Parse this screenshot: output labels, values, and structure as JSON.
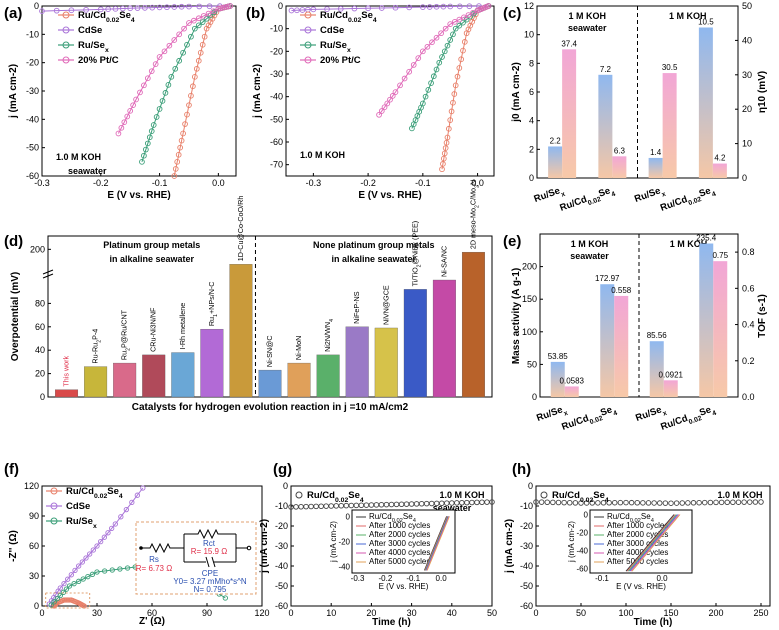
{
  "panel_labels": [
    "(a)",
    "(b)",
    "(c)",
    "(d)",
    "(e)",
    "(f)",
    "(g)",
    "(h)"
  ],
  "legend_polar": [
    "Ru/Cd0.02Se4",
    "CdSe",
    "Ru/Sex",
    "20% Pt/C"
  ],
  "legend_eis": [
    "Ru/Cd0.02Se4",
    "CdSe",
    "Ru/Sex"
  ],
  "legend_stab": [
    "Ru/Cd0.02Se4"
  ],
  "colors": {
    "RuCd": "#e8806a",
    "CdSe": "#a974d8",
    "RuSe": "#3a9e78",
    "PtC": "#e069b8"
  },
  "chart_data": [
    {
      "id": "a",
      "type": "line",
      "title": "",
      "annotation": [
        "1.0 M KOH",
        "seawater"
      ],
      "xlabel": "E (V vs. RHE)",
      "ylabel": "j (mA cm-2)",
      "xlim": [
        -0.3,
        0.03
      ],
      "ylim": [
        -60,
        0
      ],
      "xticks": [
        -0.3,
        -0.2,
        -0.1,
        0.0
      ],
      "yticks": [
        -60,
        -50,
        -40,
        -30,
        -20,
        -10,
        0
      ],
      "series": [
        {
          "name": "Ru/Cd0.02Se4",
          "x": [
            0.02,
            0.0,
            -0.02,
            -0.04,
            -0.06,
            -0.075
          ],
          "y": [
            0,
            -1,
            -8,
            -25,
            -45,
            -60
          ]
        },
        {
          "name": "CdSe",
          "x": [
            0.02,
            -0.05,
            -0.1,
            -0.15,
            -0.2,
            -0.3
          ],
          "y": [
            0,
            -0.2,
            -0.5,
            -0.8,
            -1.2,
            -1.8
          ]
        },
        {
          "name": "Ru/Sex",
          "x": [
            0.02,
            0.0,
            -0.04,
            -0.08,
            -0.11,
            -0.13
          ],
          "y": [
            0,
            -1,
            -8,
            -25,
            -42,
            -55
          ]
        },
        {
          "name": "20% Pt/C",
          "x": [
            0.02,
            0.0,
            -0.05,
            -0.1,
            -0.14,
            -0.17
          ],
          "y": [
            0,
            -1,
            -6,
            -18,
            -33,
            -45
          ]
        }
      ]
    },
    {
      "id": "b",
      "type": "line",
      "title": "",
      "annotation": [
        "1.0 M KOH"
      ],
      "xlabel": "E (V vs. RHE)",
      "ylabel": "j (mA cm-2)",
      "xlim": [
        -0.35,
        0.03
      ],
      "ylim": [
        -75,
        0
      ],
      "xticks": [
        -0.3,
        -0.2,
        -0.1,
        0.0
      ],
      "yticks": [
        -70,
        -60,
        -50,
        -40,
        -30,
        -20,
        -10,
        0
      ],
      "series": [
        {
          "name": "Ru/Cd0.02Se4",
          "x": [
            0.02,
            0.0,
            -0.02,
            -0.04,
            -0.055,
            -0.065
          ],
          "y": [
            0,
            -2,
            -12,
            -35,
            -58,
            -72
          ]
        },
        {
          "name": "CdSe",
          "x": [
            0.02,
            -0.05,
            -0.1,
            -0.2,
            -0.3,
            -0.34
          ],
          "y": [
            0,
            -0.2,
            -0.5,
            -1.0,
            -1.5,
            -2
          ]
        },
        {
          "name": "Ru/Sex",
          "x": [
            0.02,
            0.0,
            -0.04,
            -0.07,
            -0.1,
            -0.12
          ],
          "y": [
            0,
            -2,
            -10,
            -25,
            -43,
            -54
          ]
        },
        {
          "name": "20% Pt/C",
          "x": [
            0.02,
            0.0,
            -0.05,
            -0.1,
            -0.15,
            -0.18
          ],
          "y": [
            0,
            -2,
            -8,
            -20,
            -38,
            -48
          ]
        }
      ]
    },
    {
      "id": "c",
      "type": "bar",
      "sections": [
        "1 M KOH seawater",
        "1 M KOH"
      ],
      "categories": [
        "Ru/Sex",
        "Ru/Cd0.02Se4",
        "Ru/Sex",
        "Ru/Cd0.02Se4"
      ],
      "ylabel_left": "j0 (mA cm-2)",
      "ylabel_right": "η10 (mV)",
      "ylim_left": [
        0,
        12
      ],
      "ylim_right": [
        0,
        50
      ],
      "yticks_left": [
        0,
        2,
        4,
        6,
        8,
        10,
        12
      ],
      "yticks_right": [
        0,
        10,
        20,
        30,
        40,
        50
      ],
      "series": [
        {
          "name": "j0",
          "values": [
            2.2,
            7.2,
            1.4,
            10.5
          ]
        },
        {
          "name": "η10",
          "values": [
            37.4,
            6.3,
            30.5,
            4.2
          ]
        }
      ]
    },
    {
      "id": "d",
      "type": "bar",
      "xlabel": "Catalysts for hydrogen evolution reaction in  j =10 mA/cm2",
      "ylabel": "Overpotential (mV)",
      "group_titles": [
        [
          "Platinum group metals",
          "in alkaline seawater"
        ],
        [
          "None platinum group metals",
          "in alkaline seawater"
        ]
      ],
      "yticks": [
        0,
        20,
        40,
        60,
        80,
        200
      ],
      "categories": [
        "This work",
        "Ru-Ru2P-4",
        "Ru2P@Ru/CNT",
        "CRu-Ni3N/NF",
        "I-Rh metallene",
        "Ru1+NPs/N-C",
        "1D-Cu@Co-CoO/Rh",
        "Ni-SN@C",
        "Ni-MoN",
        "Ni2N/WN4",
        "NiFeP-NS",
        "NiVN@GCE",
        "Ti/TiO2@NiBx (PEE)",
        "Ni-SA/NC",
        "2D meso-Mo2C/Mo2N"
      ],
      "values": [
        6.3,
        26,
        29,
        36,
        38,
        58,
        184,
        23,
        29,
        36,
        60,
        59,
        92,
        100,
        197
      ]
    },
    {
      "id": "e",
      "type": "bar",
      "sections": [
        "1 M KOH seawater",
        "1 M KOH"
      ],
      "categories": [
        "Ru/Sex",
        "Ru/Cd0.02Se4",
        "Ru/Sex",
        "Ru/Cd0.02Se4"
      ],
      "ylabel_left": "Mass activity (A g-1)",
      "ylabel_right": "TOF (s-1)",
      "yticks_left": [
        0,
        50,
        100,
        150,
        200
      ],
      "yticks_right": [
        0.0,
        0.2,
        0.4,
        0.6,
        0.8
      ],
      "series": [
        {
          "name": "Mass activity",
          "values": [
            53.85,
            172.97,
            85.56,
            235.4
          ]
        },
        {
          "name": "TOF",
          "values": [
            0.0583,
            0.558,
            0.0921,
            0.75
          ]
        }
      ]
    },
    {
      "id": "f",
      "type": "scatter",
      "xlabel": "Z' (Ω)",
      "ylabel": "-Z'' (Ω)",
      "xlim": [
        0,
        120
      ],
      "ylim": [
        0,
        120
      ],
      "xticks": [
        0,
        30,
        60,
        90,
        120
      ],
      "yticks": [
        0,
        30,
        60,
        90,
        120
      ],
      "circuit": {
        "Rs": "Rs",
        "Rs_value": "R= 6.73 Ω",
        "Rct": "Rct",
        "Rct_value": "R= 15.9 Ω",
        "CPE": "CPE",
        "CPE_Y0": "Y0= 3.27 mMho*s^N",
        "CPE_N": "N= 0.795"
      },
      "series": [
        {
          "name": "Ru/Cd0.02Se4",
          "x": [
            6.7,
            8,
            12,
            16,
            20,
            23
          ],
          "y": [
            0,
            3,
            6,
            6,
            3,
            0
          ]
        },
        {
          "name": "CdSe",
          "x": [
            4,
            10,
            20,
            30,
            40,
            55
          ],
          "y": [
            2,
            18,
            40,
            60,
            82,
            118
          ]
        },
        {
          "name": "Ru/Sex",
          "x": [
            5,
            15,
            30,
            55,
            80,
            100
          ],
          "y": [
            1,
            20,
            34,
            40,
            32,
            8
          ]
        }
      ]
    },
    {
      "id": "g",
      "type": "line",
      "annotation": [
        "1.0 M KOH",
        "seawater"
      ],
      "xlabel": "Time (h)",
      "ylabel": "j (mA cm-2)",
      "xlim": [
        0,
        50
      ],
      "ylim": [
        -60,
        0
      ],
      "xticks": [
        0,
        10,
        20,
        30,
        40,
        50
      ],
      "yticks": [
        -60,
        -50,
        -40,
        -30,
        -20,
        -10,
        0
      ],
      "series": [
        {
          "name": "Ru/Cd0.02Se4",
          "x": [
            0,
            10,
            20,
            30,
            40,
            50
          ],
          "y": [
            -10.5,
            -10,
            -9.5,
            -9,
            -8.5,
            -8
          ]
        }
      ],
      "inset": {
        "xlabel": "E (V vs. RHE)",
        "ylabel": "j (mA cm-2)",
        "xticks": [
          -0.3,
          -0.2,
          -0.1,
          0.0
        ],
        "yticks": [
          -40,
          -20,
          0
        ],
        "legend": [
          "Ru/Cd0.02Se4",
          "After 1000 cycles",
          "After 2000 cycles",
          "After 3000 cycles",
          "After 4000 cycles",
          "After 5000 cycles"
        ]
      }
    },
    {
      "id": "h",
      "type": "line",
      "annotation": [
        "1.0 M KOH"
      ],
      "xlabel": "Time (h)",
      "ylabel": "j (mA cm-2)",
      "xlim": [
        0,
        260
      ],
      "ylim": [
        -60,
        0
      ],
      "xticks": [
        0,
        50,
        100,
        150,
        200,
        250
      ],
      "yticks": [
        -60,
        -50,
        -40,
        -30,
        -20,
        -10,
        0
      ],
      "series": [
        {
          "name": "Ru/Cd0.02Se4",
          "x": [
            0,
            50,
            100,
            150,
            200,
            250
          ],
          "y": [
            -8,
            -8.5,
            -8.3,
            -8.6,
            -8.2,
            -8
          ]
        }
      ],
      "inset": {
        "xlabel": "E (V vs. RHE)",
        "ylabel": "j (mA cm-2)",
        "xticks": [
          -0.1,
          0.0
        ],
        "yticks": [
          -60,
          -40,
          -20,
          0
        ],
        "legend": [
          "Ru/Cd0.02Se4",
          "After 1000 cycles",
          "After 2000 cycles",
          "After 3000 cycles",
          "After 4000 cycles",
          "After 5000 cycles"
        ]
      }
    }
  ]
}
